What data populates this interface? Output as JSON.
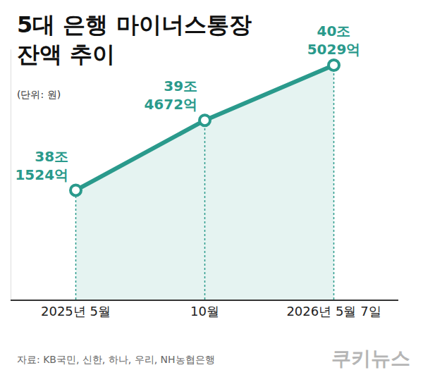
{
  "chart_data": {
    "type": "line",
    "title": "5대 은행 마이너스통장 잔액 추이",
    "subtitle": "(단위: 원)",
    "categories": [
      "2025년 5월",
      "10월",
      "2026년 5월 7일"
    ],
    "values": [
      381524,
      394672,
      405029
    ],
    "value_labels": [
      "38조 1524억",
      "39조 4672억",
      "40조 5029억"
    ],
    "data_labels": true,
    "color": "#2a9a8c",
    "ylim": [
      361000,
      408000
    ],
    "tick_labels": "x",
    "grid": false,
    "source": "자료: KB국민, 신한, 하나, 우리, NH농협은행",
    "logo": "쿠키뉴스"
  }
}
